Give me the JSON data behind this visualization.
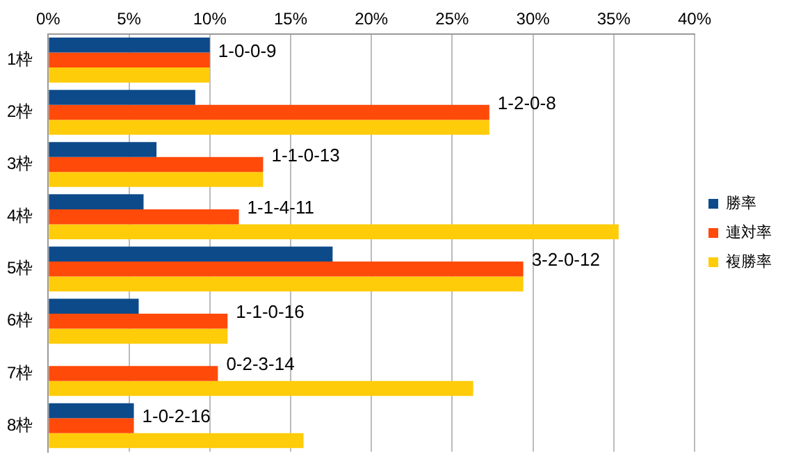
{
  "chart_data": {
    "type": "bar",
    "orientation": "horizontal",
    "categories": [
      "1枠",
      "2枠",
      "3枠",
      "4枠",
      "5枠",
      "6枠",
      "7枠",
      "8枠"
    ],
    "series": [
      {
        "name": "勝率",
        "color": "#0d4a8a",
        "values": [
          10,
          9.1,
          6.7,
          5.9,
          17.6,
          5.6,
          0,
          5.3
        ]
      },
      {
        "name": "連対率",
        "color": "#ff4a0a",
        "values": [
          10,
          27.3,
          13.3,
          11.8,
          29.4,
          11.1,
          10.5,
          5.3
        ]
      },
      {
        "name": "複勝率",
        "color": "#ffcc0a",
        "values": [
          10,
          27.3,
          13.3,
          35.3,
          29.4,
          11.1,
          26.3,
          15.8
        ]
      }
    ],
    "xlim": [
      0,
      40
    ],
    "xticks": [
      {
        "value": 0,
        "label": "0%"
      },
      {
        "value": 5,
        "label": "5%"
      },
      {
        "value": 10,
        "label": "10%"
      },
      {
        "value": 15,
        "label": "15%"
      },
      {
        "value": 20,
        "label": "20%"
      },
      {
        "value": 25,
        "label": "25%"
      },
      {
        "value": 30,
        "label": "30%"
      },
      {
        "value": 35,
        "label": "35%"
      },
      {
        "value": 40,
        "label": "40%"
      }
    ],
    "grid": "x",
    "legend": "right",
    "annotations": [
      "1-0-0-9",
      "1-2-0-8",
      "1-1-0-13",
      "1-1-4-11",
      "3-2-0-12",
      "1-1-0-16",
      "0-2-3-14",
      "1-0-2-16"
    ]
  }
}
